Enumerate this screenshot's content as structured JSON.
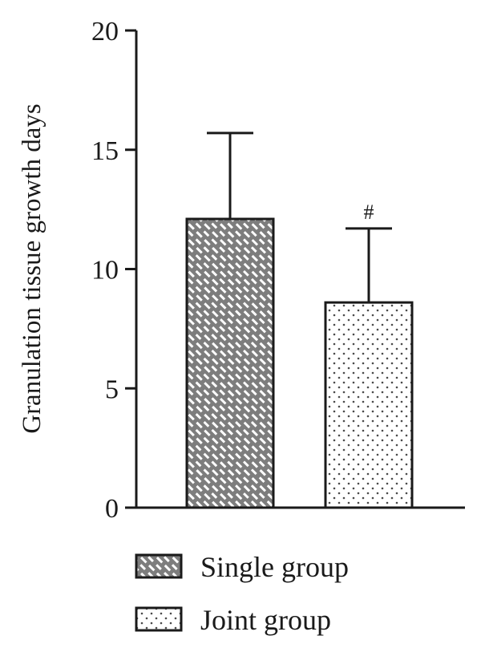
{
  "chart_data": {
    "type": "bar",
    "categories": [
      "Single group",
      "Joint group"
    ],
    "series": [
      {
        "name": "Granulation tissue growth days",
        "values": [
          12.1,
          8.6
        ],
        "errors": [
          3.6,
          3.1
        ]
      }
    ],
    "legend": {
      "position": "bottom",
      "entries": [
        {
          "label": "Single group",
          "pattern": "hatch",
          "fill": "#7d7d7d"
        },
        {
          "label": "Joint group",
          "pattern": "dots",
          "fill": "#ffffff"
        }
      ]
    },
    "annotations": [
      {
        "category": "Joint group",
        "text": "#"
      }
    ],
    "title": "",
    "xlabel": "",
    "ylabel": "Granulation tissue growth days",
    "ylim": [
      0,
      20
    ],
    "yticks": [
      "0",
      "5",
      "10",
      "15",
      "20"
    ],
    "grid": false,
    "colors": {
      "axis": "#1a1a1a",
      "hatch_fill": "#7d7d7d",
      "hatch_line": "#ffffff",
      "dot_color": "#4a4a4a"
    }
  }
}
